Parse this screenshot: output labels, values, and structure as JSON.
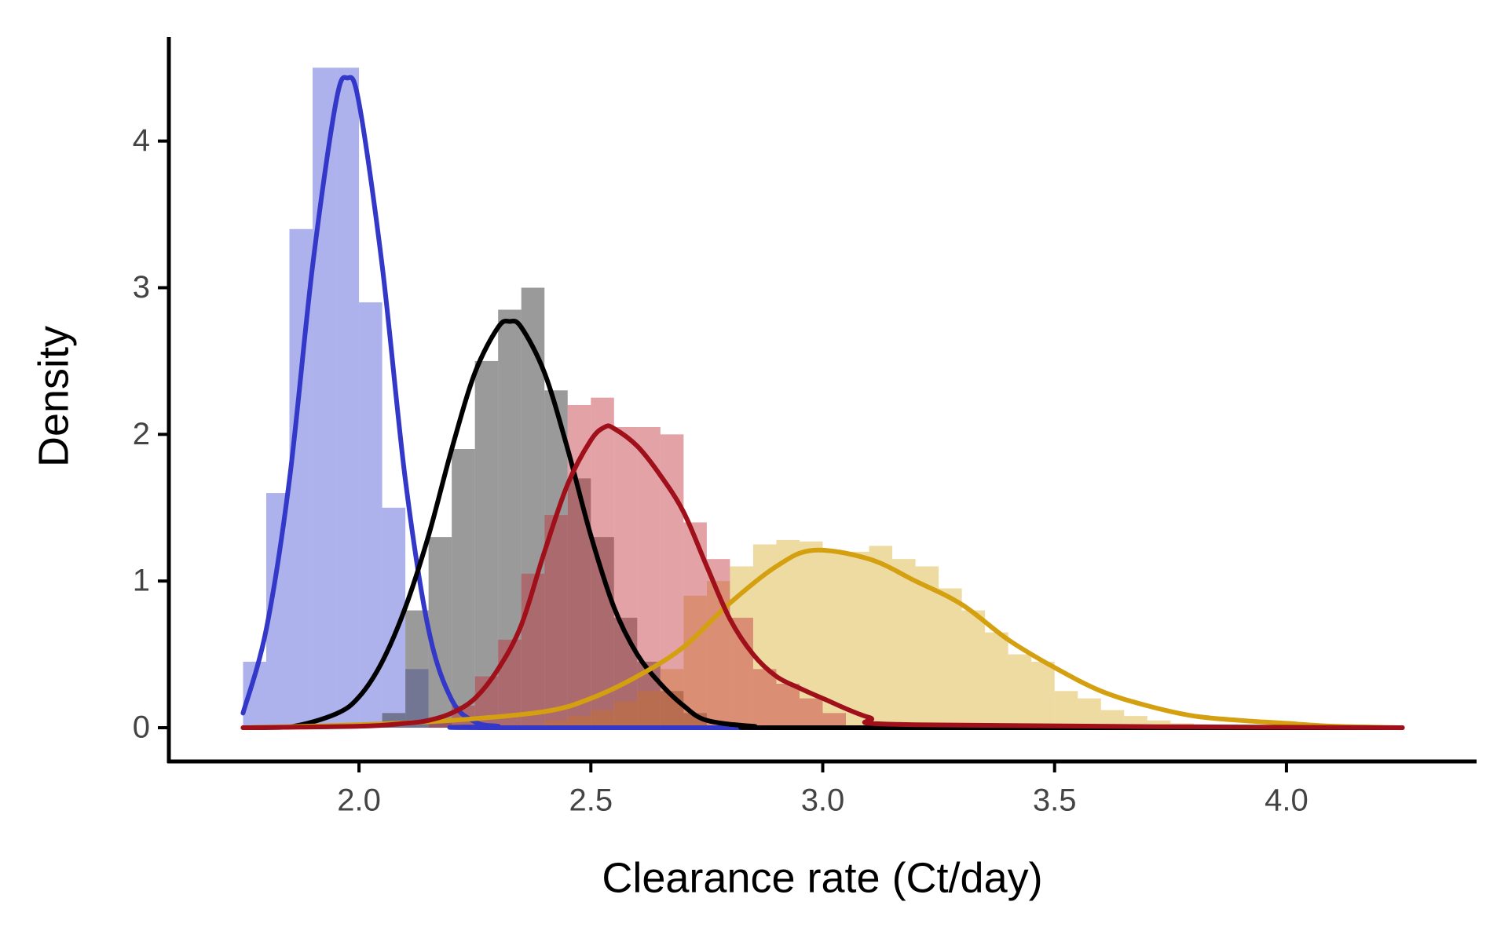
{
  "chart_data": {
    "type": "histogram",
    "xlabel": "Clearance rate (Ct/day)",
    "ylabel": "Density",
    "xlim": [
      1.59,
      4.41
    ],
    "ylim": [
      -0.23,
      4.71
    ],
    "xticks": [
      {
        "value": 2,
        "label": "2.0"
      },
      {
        "value": 2.5,
        "label": "2.5"
      },
      {
        "value": 3,
        "label": "3.0"
      },
      {
        "value": 3.5,
        "label": "3.5"
      },
      {
        "value": 4,
        "label": "4.0"
      }
    ],
    "yticks": [
      0,
      1,
      2,
      3,
      4
    ],
    "series": [
      {
        "color": "#4a55d6",
        "opacity": 0.45,
        "line_color": "#3338c8",
        "bins": [
          1.75,
          1.8,
          1.85,
          1.9,
          1.95,
          2.0,
          2.05,
          2.1,
          2.15,
          2.2
        ],
        "values": [
          0.45,
          1.6,
          3.4,
          4.5,
          4.5,
          2.9,
          1.5,
          0.4,
          0.05
        ],
        "curve_x": [
          1.75,
          1.8,
          1.85,
          1.9,
          1.95,
          1.975,
          2.0,
          2.05,
          2.1,
          2.15,
          2.2,
          2.25,
          2.3,
          2.35,
          4.25
        ],
        "curve_values": [
          0.1,
          0.67,
          1.69,
          3.15,
          4.26,
          4.43,
          4.26,
          3.15,
          1.69,
          0.67,
          0.19,
          0.04,
          0.01,
          0,
          0
        ]
      },
      {
        "color": "#404040",
        "opacity": 0.53,
        "line_color": "#000000",
        "bins": [
          2.05,
          2.1,
          2.15,
          2.2,
          2.25,
          2.3,
          2.35,
          2.4,
          2.45,
          2.5,
          2.55,
          2.6,
          2.65,
          2.7,
          2.75
        ],
        "values": [
          0.1,
          0.8,
          1.3,
          1.9,
          2.5,
          2.85,
          3.0,
          2.3,
          1.7,
          1.3,
          0.75,
          0.45,
          0.25,
          0.1
        ],
        "curve_x": [
          1.75,
          1.85,
          1.95,
          2.0,
          2.05,
          2.1,
          2.15,
          2.2,
          2.25,
          2.3,
          2.325,
          2.35,
          2.4,
          2.45,
          2.5,
          2.55,
          2.6,
          2.65,
          2.7,
          2.75,
          2.85,
          2.95,
          4.25
        ],
        "curve_values": [
          0,
          0.005,
          0.094,
          0.21,
          0.45,
          0.82,
          1.31,
          1.9,
          2.42,
          2.73,
          2.77,
          2.73,
          2.42,
          1.9,
          1.31,
          0.82,
          0.5,
          0.3,
          0.15,
          0.05,
          0.01,
          0,
          0
        ]
      },
      {
        "color": "#d4a617",
        "opacity": 0.4,
        "line_color": "#d4a010",
        "bins": [
          2.35,
          2.4,
          2.45,
          2.5,
          2.55,
          2.6,
          2.65,
          2.7,
          2.75,
          2.8,
          2.85,
          2.9,
          2.95,
          3.0,
          3.05,
          3.1,
          3.15,
          3.2,
          3.25,
          3.3,
          3.35,
          3.4,
          3.45,
          3.5,
          3.55,
          3.6,
          3.65,
          3.7,
          3.75,
          3.8,
          3.85,
          3.9,
          3.95,
          4.0,
          4.05
        ],
        "values": [
          0.02,
          0.05,
          0.08,
          0.12,
          0.18,
          0.25,
          0.4,
          0.9,
          1.0,
          1.1,
          1.25,
          1.28,
          1.27,
          1.2,
          1.2,
          1.24,
          1.15,
          1.1,
          0.95,
          0.8,
          0.65,
          0.5,
          0.45,
          0.25,
          0.2,
          0.12,
          0.08,
          0.05,
          0.03,
          0.02,
          0.01,
          0.01,
          0.005,
          0.005
        ],
        "curve_x": [
          1.75,
          2.0,
          2.2,
          2.4,
          2.5,
          2.6,
          2.7,
          2.8,
          2.9,
          2.98,
          3.1,
          3.2,
          3.3,
          3.4,
          3.5,
          3.6,
          3.7,
          3.8,
          3.9,
          4.0,
          4.1,
          4.25
        ],
        "curve_values": [
          0,
          0.02,
          0.05,
          0.11,
          0.2,
          0.35,
          0.55,
          0.85,
          1.1,
          1.21,
          1.15,
          1.0,
          0.84,
          0.6,
          0.41,
          0.25,
          0.15,
          0.08,
          0.05,
          0.03,
          0.01,
          0
        ]
      },
      {
        "color": "#c0303a",
        "opacity": 0.45,
        "line_color": "#a0101a",
        "bins": [
          2.15,
          2.2,
          2.25,
          2.3,
          2.35,
          2.4,
          2.45,
          2.5,
          2.55,
          2.6,
          2.65,
          2.7,
          2.75,
          2.8,
          2.85,
          2.9,
          2.95,
          3.0,
          3.05
        ],
        "values": [
          0.05,
          0.15,
          0.35,
          0.6,
          1.05,
          1.45,
          2.2,
          2.25,
          2.05,
          2.05,
          2.0,
          1.4,
          1.15,
          0.75,
          0.4,
          0.3,
          0.2,
          0.1
        ],
        "curve_x": [
          1.75,
          2.0,
          2.1,
          2.15,
          2.2,
          2.25,
          2.3,
          2.35,
          2.4,
          2.45,
          2.5,
          2.53,
          2.55,
          2.6,
          2.65,
          2.7,
          2.75,
          2.8,
          2.85,
          2.9,
          2.95,
          3.0,
          3.1,
          3.2,
          4.25
        ],
        "curve_values": [
          0,
          0.01,
          0.03,
          0.05,
          0.1,
          0.2,
          0.4,
          0.7,
          1.2,
          1.66,
          1.96,
          2.05,
          2.04,
          1.92,
          1.72,
          1.47,
          1.1,
          0.74,
          0.5,
          0.35,
          0.27,
          0.2,
          0.07,
          0.02,
          0
        ]
      }
    ]
  }
}
